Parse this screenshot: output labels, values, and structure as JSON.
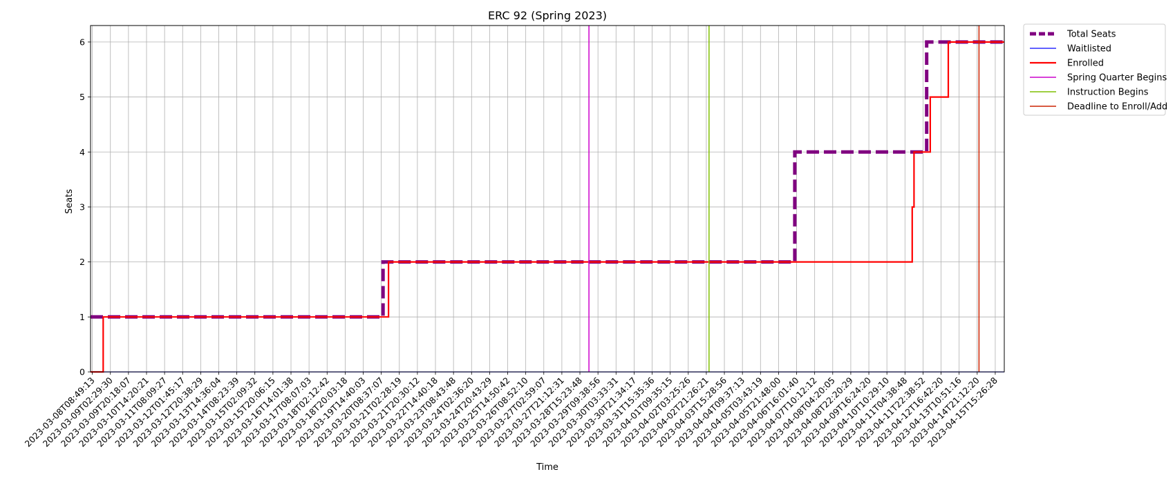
{
  "chart_data": {
    "type": "line",
    "title": "ERC 92 (Spring 2023)",
    "xlabel": "Time",
    "ylabel": "Seats",
    "ylim": [
      0,
      6.3
    ],
    "yticks": [
      0,
      1,
      2,
      3,
      4,
      5,
      6
    ],
    "grid": true,
    "legend_position": "outside-top-right",
    "x_tick_labels": [
      "2023-03-08T08:49:13",
      "2023-03-09T02:29:30",
      "2023-03-09T20:18:07",
      "2023-03-10T14:20:21",
      "2023-03-11T08:09:27",
      "2023-03-12T01:45:17",
      "2023-03-12T20:38:29",
      "2023-03-13T14:36:04",
      "2023-03-14T08:23:39",
      "2023-03-15T02:09:32",
      "2023-03-15T20:06:15",
      "2023-03-16T14:01:38",
      "2023-03-17T08:07:03",
      "2023-03-18T02:12:42",
      "2023-03-18T20:03:18",
      "2023-03-19T14:40:03",
      "2023-03-20T08:37:07",
      "2023-03-21T02:28:19",
      "2023-03-21T20:30:12",
      "2023-03-22T14:40:18",
      "2023-03-23T08:43:48",
      "2023-03-24T02:36:20",
      "2023-03-24T20:43:29",
      "2023-03-25T14:50:42",
      "2023-03-26T08:52:10",
      "2023-03-27T02:59:07",
      "2023-03-27T21:12:31",
      "2023-03-28T15:23:48",
      "2023-03-29T09:38:56",
      "2023-03-30T03:33:31",
      "2023-03-30T21:34:17",
      "2023-03-31T15:35:36",
      "2023-04-01T09:35:15",
      "2023-04-02T03:25:26",
      "2023-04-02T21:26:21",
      "2023-04-03T15:28:56",
      "2023-04-04T09:37:13",
      "2023-04-05T03:43:19",
      "2023-04-05T21:48:00",
      "2023-04-06T16:01:40",
      "2023-04-07T10:12:12",
      "2023-04-08T04:20:05",
      "2023-04-08T22:20:29",
      "2023-04-09T16:24:20",
      "2023-04-10T10:29:10",
      "2023-04-11T04:38:48",
      "2023-04-11T22:38:52",
      "2023-04-12T16:42:20",
      "2023-04-13T10:51:16",
      "2023-04-14T21:12:20",
      "2023-04-15T15:26:28"
    ],
    "x_range": [
      -0.1,
      50.5
    ],
    "series": [
      {
        "name": "Total Seats",
        "color": "#800080",
        "style": "dashed",
        "points": [
          [
            -0.1,
            1
          ],
          [
            16.1,
            1
          ],
          [
            16.1,
            2
          ],
          [
            38.9,
            2
          ],
          [
            38.9,
            4
          ],
          [
            46.2,
            4
          ],
          [
            46.2,
            6
          ],
          [
            50.5,
            6
          ]
        ]
      },
      {
        "name": "Waitlisted",
        "color": "#0000ff",
        "style": "solid",
        "points": [
          [
            -0.1,
            0
          ],
          [
            50.5,
            0
          ]
        ]
      },
      {
        "name": "Enrolled",
        "color": "#ff0000",
        "style": "solid",
        "points": [
          [
            -0.1,
            0
          ],
          [
            0.6,
            0
          ],
          [
            0.6,
            1
          ],
          [
            16.4,
            1
          ],
          [
            16.4,
            2
          ],
          [
            45.4,
            2
          ],
          [
            45.4,
            3
          ],
          [
            45.5,
            3
          ],
          [
            45.5,
            4
          ],
          [
            46.4,
            4
          ],
          [
            46.4,
            5
          ],
          [
            47.4,
            5
          ],
          [
            47.4,
            6
          ],
          [
            50.5,
            6
          ]
        ]
      }
    ],
    "vlines": [
      {
        "name": "Spring Quarter Begins",
        "x": 27.5,
        "color": "#cc00cc"
      },
      {
        "name": "Instruction Begins",
        "x": 34.15,
        "color": "#7fbf00"
      },
      {
        "name": "Deadline to Enroll/Add",
        "x": 49.1,
        "color": "#cc2200"
      }
    ]
  }
}
